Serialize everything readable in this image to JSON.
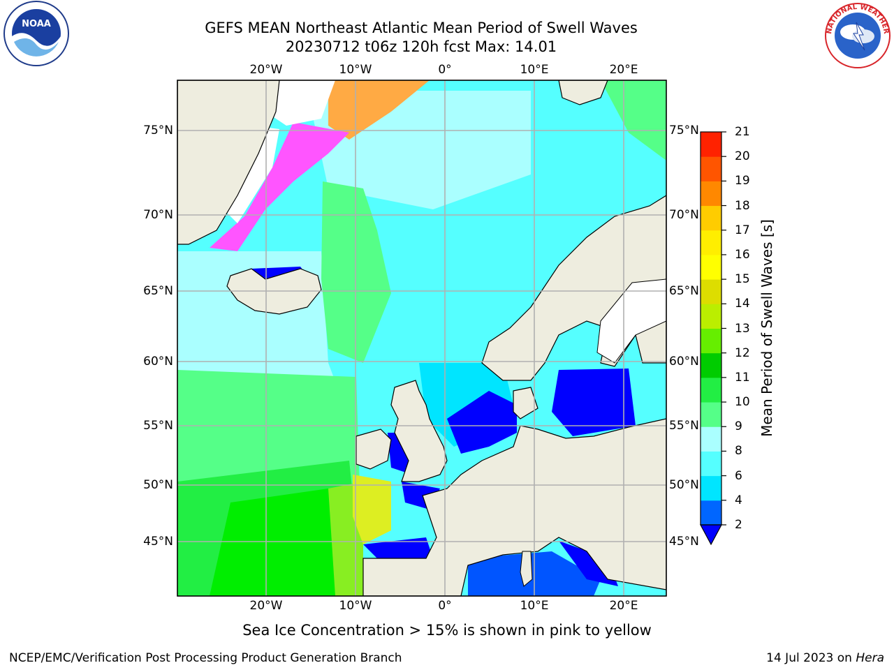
{
  "title_line1": "GEFS MEAN Northeast Atlantic Mean Period of Swell Waves",
  "title_line2": "20230712 t06z 120h fcst   Max: 14.01",
  "logos": {
    "left": "noaa-logo",
    "right": "national-weather-service-logo",
    "left_text": "NOAA",
    "right_text": "NATIONAL WEATHER SERVICE"
  },
  "lon_labels": [
    "20°W",
    "10°W",
    "0°",
    "10°E",
    "20°E"
  ],
  "lat_labels": [
    "75°N",
    "70°N",
    "65°N",
    "60°N",
    "55°N",
    "50°N",
    "45°N"
  ],
  "colorbar": {
    "label": "Mean Period of Swell Waves [s]",
    "ticks": [
      "2",
      "4",
      "6",
      "8",
      "9",
      "10",
      "11",
      "12",
      "13",
      "14",
      "15",
      "16",
      "17",
      "18",
      "19",
      "20",
      "21"
    ],
    "colors": [
      "#0066ff",
      "#00e5ff",
      "#55ffff",
      "#aaffff",
      "#55ff88",
      "#22ee44",
      "#00cc00",
      "#66ee00",
      "#bbee00",
      "#dddd00",
      "#ffff00",
      "#ffee00",
      "#ffcc00",
      "#ff8800",
      "#ff5500",
      "#ff2200"
    ],
    "extend_color": "#0000ff",
    "top_color": "#ff0000"
  },
  "colors": {
    "land": "#eeeddf",
    "ocean_swell_high": "#55ff88",
    "ice_pink": "#ff55ff"
  },
  "note": "Sea Ice Concentration > 15% is shown in pink to yellow",
  "footer_left": "NCEP/EMC/Verification Post Processing Product Generation Branch",
  "footer_right_date": "14 Jul 2023 on",
  "footer_right_host": "Hera"
}
